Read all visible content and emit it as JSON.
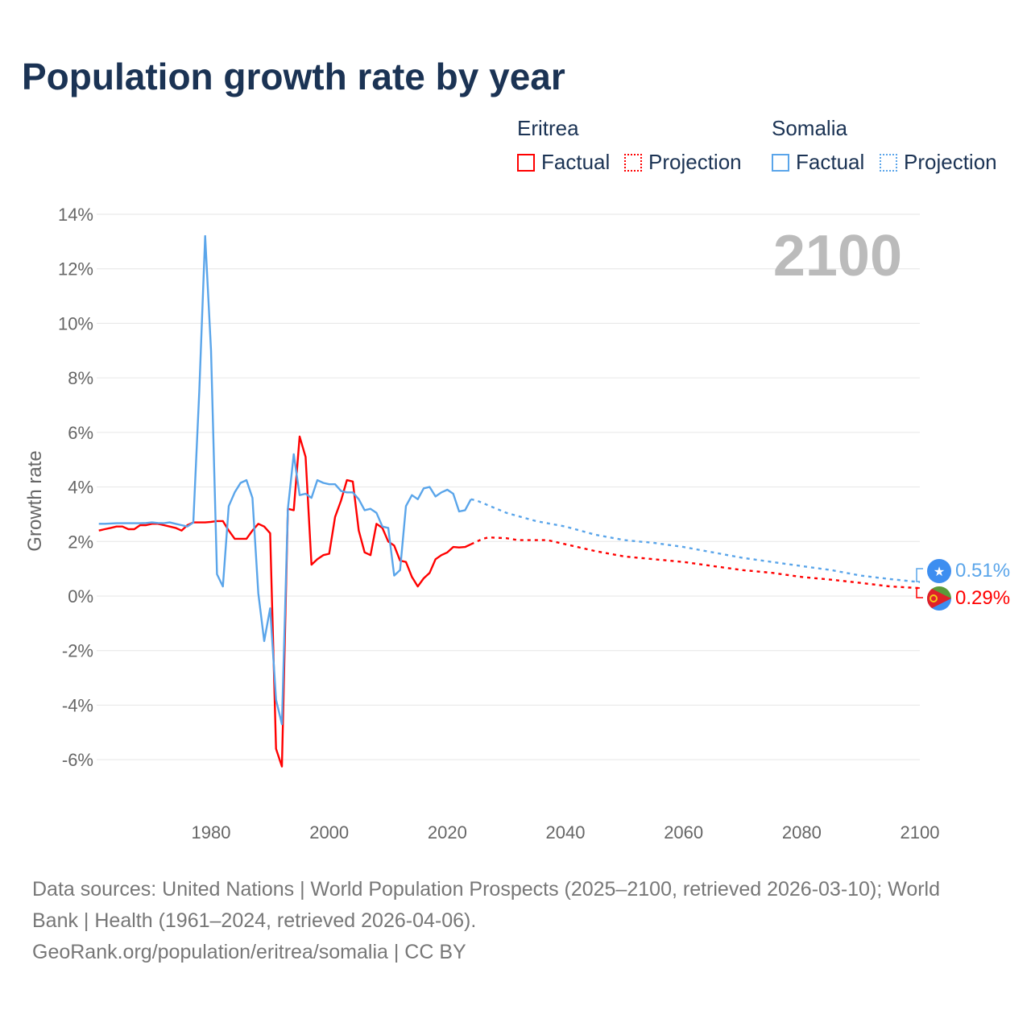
{
  "title": "Population growth rate by year",
  "legend": {
    "groups": [
      {
        "name": "Eritrea",
        "factual": "Factual",
        "projection": "Projection",
        "color": "#ff0000"
      },
      {
        "name": "Somalia",
        "factual": "Factual",
        "projection": "Projection",
        "color": "#5aa5ea"
      }
    ]
  },
  "year_label": "2100",
  "end_labels": {
    "somalia": "0.51%",
    "eritrea": "0.29%"
  },
  "footer": {
    "line1": "Data sources: United Nations | World Population Prospects (2025–2100, retrieved 2026-03-10); World",
    "line2": "Bank | Health (1961–2024, retrieved 2026-04-06).",
    "line3": "GeoRank.org/population/eritrea/somalia | CC BY"
  },
  "chart_data": {
    "type": "line",
    "title": "Population growth rate by year",
    "xlabel": "",
    "ylabel": "Growth rate",
    "xlim": [
      1961,
      2100
    ],
    "ylim": [
      -7.5,
      14.5
    ],
    "xticks": [
      1980,
      2000,
      2020,
      2040,
      2060,
      2080,
      2100
    ],
    "xtick_labels": [
      "1980",
      "2000",
      "2020",
      "2040",
      "2060",
      "2080",
      "2100"
    ],
    "yticks": [
      -6,
      -4,
      -2,
      0,
      2,
      4,
      6,
      8,
      10,
      12,
      14
    ],
    "ytick_labels": [
      "-6%",
      "-4%",
      "-2%",
      "0%",
      "2%",
      "4%",
      "6%",
      "8%",
      "10%",
      "12%",
      "14%"
    ],
    "grid": true,
    "legend_position": "top-right",
    "series": [
      {
        "name": "Eritrea Factual",
        "color": "#ff0000",
        "dashed": false,
        "start": 1961,
        "values": [
          2.4,
          2.45,
          2.5,
          2.55,
          2.55,
          2.45,
          2.45,
          2.6,
          2.6,
          2.65,
          2.65,
          2.6,
          2.55,
          2.5,
          2.4,
          2.6,
          2.7,
          2.7,
          2.7,
          2.72,
          2.75,
          2.75,
          2.4,
          2.1,
          2.1,
          2.1,
          2.4,
          2.65,
          2.55,
          2.3,
          -5.6,
          -6.25,
          3.2,
          3.15,
          5.85,
          5.1,
          1.15,
          1.35,
          1.5,
          1.55,
          2.9,
          3.5,
          4.25,
          4.2,
          2.4,
          1.6,
          1.5,
          2.65,
          2.5,
          2.0,
          1.85,
          1.3,
          1.25,
          0.7,
          0.35,
          0.65,
          0.85,
          1.35,
          1.5,
          1.6,
          1.8,
          1.78,
          1.8,
          1.9
        ]
      },
      {
        "name": "Eritrea Projection",
        "color": "#ff0000",
        "dashed": true,
        "points": [
          [
            2024,
            1.9
          ],
          [
            2025,
            2.0
          ],
          [
            2026,
            2.1
          ],
          [
            2027,
            2.15
          ],
          [
            2030,
            2.12
          ],
          [
            2032,
            2.05
          ],
          [
            2035,
            2.05
          ],
          [
            2037,
            2.05
          ],
          [
            2040,
            1.9
          ],
          [
            2045,
            1.65
          ],
          [
            2050,
            1.45
          ],
          [
            2055,
            1.35
          ],
          [
            2060,
            1.25
          ],
          [
            2065,
            1.1
          ],
          [
            2070,
            0.95
          ],
          [
            2075,
            0.85
          ],
          [
            2080,
            0.7
          ],
          [
            2085,
            0.6
          ],
          [
            2090,
            0.48
          ],
          [
            2095,
            0.35
          ],
          [
            2100,
            0.29
          ]
        ]
      },
      {
        "name": "Somalia Factual",
        "color": "#5aa5ea",
        "dashed": false,
        "start": 1961,
        "values": [
          2.65,
          2.65,
          2.66,
          2.67,
          2.67,
          2.67,
          2.67,
          2.67,
          2.68,
          2.7,
          2.68,
          2.67,
          2.7,
          2.65,
          2.6,
          2.55,
          2.7,
          7.5,
          13.2,
          9.0,
          0.8,
          0.35,
          3.3,
          3.8,
          4.15,
          4.25,
          3.6,
          0.1,
          -1.65,
          -0.45,
          -3.8,
          -4.7,
          3.2,
          5.2,
          3.7,
          3.75,
          3.6,
          4.25,
          4.15,
          4.1,
          4.1,
          3.85,
          3.8,
          3.8,
          3.55,
          3.15,
          3.2,
          3.05,
          2.55,
          2.5,
          0.75,
          0.95,
          3.3,
          3.7,
          3.55,
          3.95,
          4.0,
          3.65,
          3.8,
          3.9,
          3.75,
          3.1,
          3.15,
          3.55
        ]
      },
      {
        "name": "Somalia Projection",
        "color": "#5aa5ea",
        "dashed": true,
        "points": [
          [
            2024,
            3.55
          ],
          [
            2025,
            3.5
          ],
          [
            2030,
            3.05
          ],
          [
            2035,
            2.75
          ],
          [
            2040,
            2.55
          ],
          [
            2045,
            2.25
          ],
          [
            2050,
            2.05
          ],
          [
            2055,
            1.95
          ],
          [
            2060,
            1.8
          ],
          [
            2065,
            1.6
          ],
          [
            2070,
            1.4
          ],
          [
            2075,
            1.25
          ],
          [
            2080,
            1.1
          ],
          [
            2085,
            0.95
          ],
          [
            2090,
            0.75
          ],
          [
            2095,
            0.62
          ],
          [
            2100,
            0.51
          ]
        ]
      }
    ]
  }
}
